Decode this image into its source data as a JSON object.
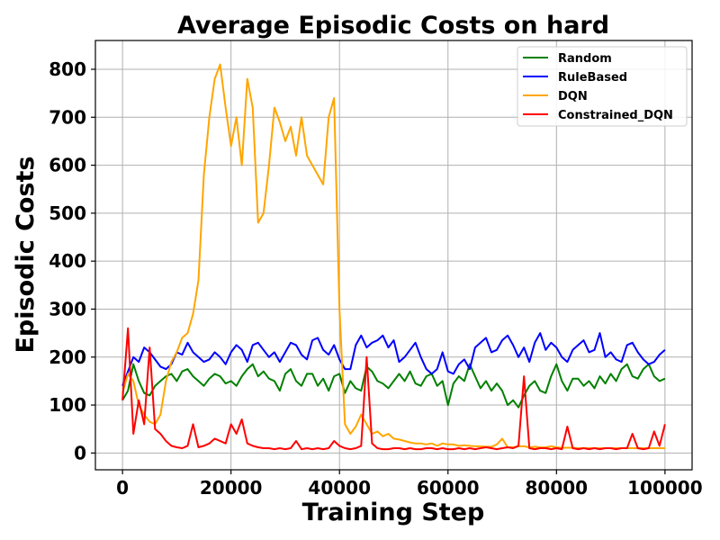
{
  "chart_data": {
    "type": "line",
    "title": "Average Episodic Costs on hard",
    "xlabel": "Training Step",
    "ylabel": "Episodic Costs",
    "xlim": [
      -5000,
      105000
    ],
    "ylim": [
      -35,
      860
    ],
    "xticks": [
      0,
      20000,
      40000,
      60000,
      80000,
      100000
    ],
    "yticks": [
      0,
      100,
      200,
      300,
      400,
      500,
      600,
      700,
      800
    ],
    "grid": true,
    "legend_position": "top-right",
    "series": [
      {
        "name": "Random",
        "color": "#008000",
        "x": [
          0,
          1000,
          2000,
          3000,
          4000,
          5000,
          6000,
          7000,
          8000,
          9000,
          10000,
          11000,
          12000,
          13000,
          14000,
          15000,
          16000,
          17000,
          18000,
          19000,
          20000,
          21000,
          22000,
          23000,
          24000,
          25000,
          26000,
          27000,
          28000,
          29000,
          30000,
          31000,
          32000,
          33000,
          34000,
          35000,
          36000,
          37000,
          38000,
          39000,
          40000,
          41000,
          42000,
          43000,
          44000,
          45000,
          46000,
          47000,
          48000,
          49000,
          50000,
          51000,
          52000,
          53000,
          54000,
          55000,
          56000,
          57000,
          58000,
          59000,
          60000,
          61000,
          62000,
          63000,
          64000,
          65000,
          66000,
          67000,
          68000,
          69000,
          70000,
          71000,
          72000,
          73000,
          74000,
          75000,
          76000,
          77000,
          78000,
          79000,
          80000,
          81000,
          82000,
          83000,
          84000,
          85000,
          86000,
          87000,
          88000,
          89000,
          90000,
          91000,
          92000,
          93000,
          94000,
          95000,
          96000,
          97000,
          98000,
          99000,
          100000
        ],
        "y": [
          110,
          130,
          185,
          150,
          125,
          120,
          140,
          150,
          160,
          165,
          150,
          170,
          175,
          160,
          150,
          140,
          155,
          165,
          160,
          145,
          150,
          140,
          160,
          175,
          185,
          160,
          170,
          155,
          150,
          130,
          165,
          175,
          150,
          140,
          165,
          165,
          140,
          155,
          130,
          160,
          165,
          125,
          150,
          135,
          130,
          180,
          170,
          150,
          145,
          135,
          150,
          165,
          150,
          170,
          145,
          140,
          160,
          165,
          140,
          150,
          100,
          145,
          160,
          150,
          185,
          160,
          135,
          150,
          130,
          145,
          130,
          100,
          110,
          95,
          120,
          140,
          150,
          130,
          125,
          160,
          185,
          150,
          130,
          155,
          155,
          140,
          150,
          135,
          160,
          145,
          165,
          150,
          175,
          185,
          160,
          155,
          175,
          185,
          160,
          150,
          155
        ]
      },
      {
        "name": "RuleBased",
        "color": "#0000ff",
        "x": [
          0,
          1000,
          2000,
          3000,
          4000,
          5000,
          6000,
          7000,
          8000,
          9000,
          10000,
          11000,
          12000,
          13000,
          14000,
          15000,
          16000,
          17000,
          18000,
          19000,
          20000,
          21000,
          22000,
          23000,
          24000,
          25000,
          26000,
          27000,
          28000,
          29000,
          30000,
          31000,
          32000,
          33000,
          34000,
          35000,
          36000,
          37000,
          38000,
          39000,
          40000,
          41000,
          42000,
          43000,
          44000,
          45000,
          46000,
          47000,
          48000,
          49000,
          50000,
          51000,
          52000,
          53000,
          54000,
          55000,
          56000,
          57000,
          58000,
          59000,
          60000,
          61000,
          62000,
          63000,
          64000,
          65000,
          66000,
          67000,
          68000,
          69000,
          70000,
          71000,
          72000,
          73000,
          74000,
          75000,
          76000,
          77000,
          78000,
          79000,
          80000,
          81000,
          82000,
          83000,
          84000,
          85000,
          86000,
          87000,
          88000,
          89000,
          90000,
          91000,
          92000,
          93000,
          94000,
          95000,
          96000,
          97000,
          98000,
          99000,
          100000
        ],
        "y": [
          140,
          170,
          200,
          190,
          220,
          210,
          195,
          180,
          175,
          185,
          210,
          205,
          230,
          210,
          200,
          190,
          195,
          210,
          200,
          185,
          210,
          225,
          215,
          190,
          225,
          230,
          215,
          200,
          210,
          190,
          210,
          230,
          225,
          205,
          195,
          235,
          240,
          215,
          205,
          225,
          195,
          175,
          175,
          225,
          245,
          220,
          230,
          235,
          245,
          220,
          235,
          190,
          200,
          215,
          230,
          200,
          175,
          165,
          175,
          210,
          170,
          165,
          185,
          195,
          175,
          220,
          230,
          240,
          210,
          215,
          235,
          245,
          225,
          200,
          220,
          190,
          230,
          250,
          215,
          230,
          220,
          200,
          190,
          215,
          225,
          235,
          210,
          215,
          250,
          200,
          210,
          195,
          190,
          225,
          230,
          210,
          195,
          185,
          190,
          205,
          215
        ]
      },
      {
        "name": "DQN",
        "color": "#ffa500",
        "x": [
          0,
          1000,
          2000,
          3000,
          4000,
          5000,
          6000,
          7000,
          8000,
          9000,
          10000,
          11000,
          12000,
          13000,
          14000,
          15000,
          16000,
          17000,
          18000,
          19000,
          20000,
          21000,
          22000,
          23000,
          24000,
          25000,
          26000,
          27000,
          28000,
          29000,
          30000,
          31000,
          32000,
          33000,
          34000,
          35000,
          36000,
          37000,
          38000,
          39000,
          40000,
          41000,
          42000,
          43000,
          44000,
          45000,
          46000,
          47000,
          48000,
          49000,
          50000,
          51000,
          52000,
          53000,
          54000,
          55000,
          56000,
          57000,
          58000,
          59000,
          60000,
          61000,
          62000,
          63000,
          64000,
          65000,
          66000,
          67000,
          68000,
          69000,
          70000,
          71000,
          72000,
          73000,
          74000,
          75000,
          76000,
          77000,
          78000,
          79000,
          80000,
          81000,
          82000,
          83000,
          84000,
          85000,
          86000,
          87000,
          88000,
          89000,
          90000,
          91000,
          92000,
          93000,
          94000,
          95000,
          96000,
          97000,
          98000,
          99000,
          100000
        ],
        "y": [
          125,
          165,
          150,
          100,
          80,
          65,
          60,
          80,
          150,
          190,
          210,
          240,
          250,
          290,
          360,
          580,
          700,
          780,
          810,
          720,
          640,
          700,
          600,
          780,
          720,
          480,
          500,
          600,
          720,
          690,
          650,
          680,
          620,
          700,
          620,
          600,
          580,
          560,
          700,
          740,
          300,
          60,
          40,
          55,
          80,
          60,
          40,
          45,
          35,
          40,
          30,
          28,
          25,
          22,
          20,
          20,
          18,
          20,
          15,
          20,
          18,
          18,
          15,
          16,
          15,
          14,
          14,
          13,
          13,
          18,
          30,
          12,
          12,
          14,
          14,
          12,
          13,
          12,
          12,
          14,
          12,
          11,
          11,
          11,
          10,
          10,
          10,
          10,
          10,
          10,
          10,
          10,
          10,
          10,
          10,
          10,
          10,
          10,
          10,
          10,
          10
        ]
      },
      {
        "name": "Constrained_DQN",
        "color": "#ff0000",
        "x": [
          0,
          1000,
          2000,
          3000,
          4000,
          5000,
          6000,
          7000,
          8000,
          9000,
          10000,
          11000,
          12000,
          13000,
          14000,
          15000,
          16000,
          17000,
          18000,
          19000,
          20000,
          21000,
          22000,
          23000,
          24000,
          25000,
          26000,
          27000,
          28000,
          29000,
          30000,
          31000,
          32000,
          33000,
          34000,
          35000,
          36000,
          37000,
          38000,
          39000,
          40000,
          41000,
          42000,
          43000,
          44000,
          45000,
          46000,
          47000,
          48000,
          49000,
          50000,
          51000,
          52000,
          53000,
          54000,
          55000,
          56000,
          57000,
          58000,
          59000,
          60000,
          61000,
          62000,
          63000,
          64000,
          65000,
          66000,
          67000,
          68000,
          69000,
          70000,
          71000,
          72000,
          73000,
          74000,
          75000,
          76000,
          77000,
          78000,
          79000,
          80000,
          81000,
          82000,
          83000,
          84000,
          85000,
          86000,
          87000,
          88000,
          89000,
          90000,
          91000,
          92000,
          93000,
          94000,
          95000,
          96000,
          97000,
          98000,
          99000,
          100000
        ],
        "y": [
          110,
          260,
          40,
          110,
          60,
          220,
          50,
          40,
          25,
          15,
          12,
          10,
          15,
          60,
          12,
          15,
          20,
          30,
          25,
          20,
          60,
          40,
          70,
          20,
          15,
          12,
          10,
          10,
          8,
          10,
          8,
          10,
          25,
          8,
          10,
          8,
          10,
          8,
          10,
          25,
          15,
          10,
          8,
          10,
          15,
          200,
          20,
          10,
          8,
          8,
          10,
          10,
          8,
          10,
          8,
          8,
          10,
          10,
          8,
          10,
          8,
          8,
          10,
          8,
          10,
          8,
          10,
          12,
          10,
          8,
          10,
          12,
          10,
          15,
          160,
          10,
          8,
          10,
          10,
          8,
          10,
          8,
          55,
          10,
          8,
          10,
          8,
          10,
          8,
          10,
          10,
          8,
          10,
          10,
          40,
          10,
          8,
          10,
          45,
          15,
          60
        ]
      }
    ]
  }
}
